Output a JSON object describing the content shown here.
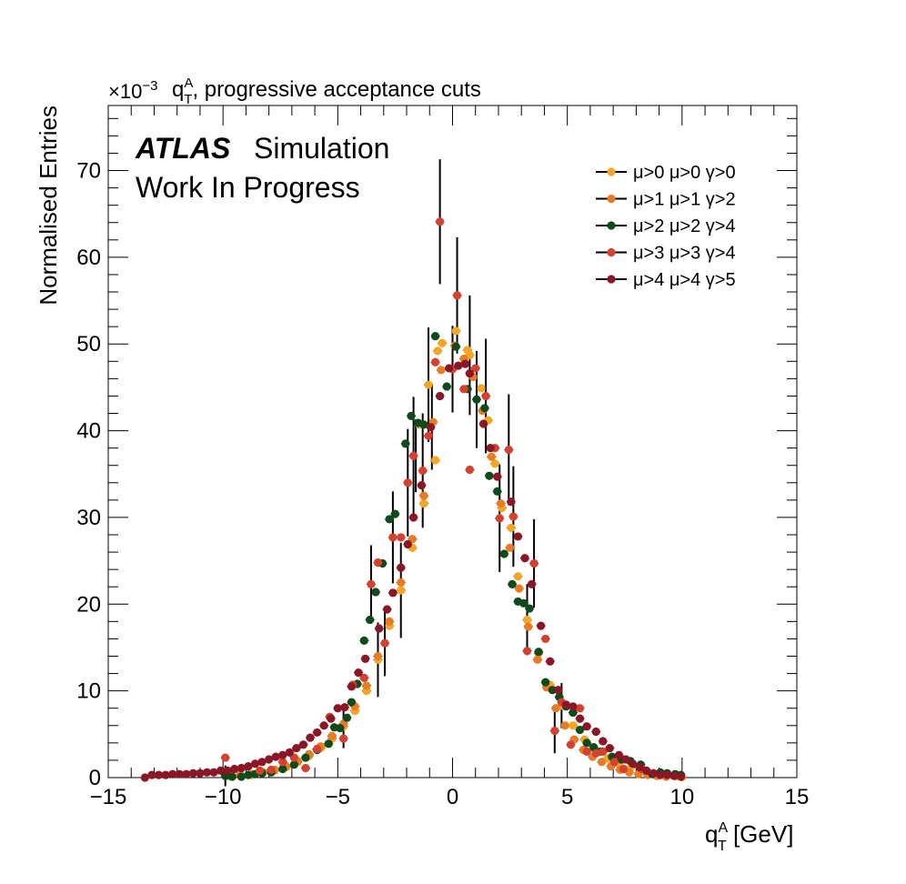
{
  "chart_data": {
    "type": "scatter",
    "title": "q_T^A, progressive acceptance cuts",
    "title_parts": {
      "prefix": "q",
      "sup": "A",
      "sub": "T",
      "rest": ", progressive acceptance cuts"
    },
    "exponent_label": {
      "base": "×10",
      "exp": "−3"
    },
    "xlabel": "q_T^A [GeV]",
    "xlabel_parts": {
      "prefix": "q",
      "sup": "A",
      "sub": "T",
      "rest": " [GeV]"
    },
    "ylabel": "Normalised Entries",
    "xlim": [
      -15,
      15
    ],
    "ylim": [
      0,
      77.5
    ],
    "y_scale_note": "values in units of 1e-3",
    "x_ticks": [
      -15,
      -10,
      -5,
      0,
      5,
      10,
      15
    ],
    "x_tick_labels": [
      "−15",
      "−10",
      "−5",
      "0",
      "5",
      "10",
      "15"
    ],
    "y_ticks": [
      0,
      10,
      20,
      30,
      40,
      50,
      60,
      70
    ],
    "y_tick_labels": [
      "0",
      "10",
      "20",
      "30",
      "40",
      "50",
      "60",
      "70"
    ],
    "grid": false,
    "legend_position": "top-right",
    "annotations": {
      "atlas": "ATLAS",
      "simulation": "Simulation",
      "status": "Work In Progress"
    },
    "series": [
      {
        "name": "μ>0  μ>0  γ>0",
        "color": "#f5a623",
        "points": [
          [
            -9.75,
            0.3
          ],
          [
            -9.25,
            0.3
          ],
          [
            -8.75,
            0.3
          ],
          [
            -8.25,
            0.6
          ],
          [
            -7.75,
            0.8
          ],
          [
            -7.25,
            1.2
          ],
          [
            -6.75,
            1.8
          ],
          [
            -6.25,
            2.5
          ],
          [
            -5.75,
            3.4
          ],
          [
            -5.25,
            4.5
          ],
          [
            -4.75,
            5.9
          ],
          [
            -4.25,
            7.7
          ],
          [
            -3.75,
            10.0
          ],
          [
            -3.25,
            13.6
          ],
          [
            -2.75,
            17.5
          ],
          [
            -2.25,
            21.6
          ],
          [
            -1.75,
            26.5
          ],
          [
            -1.25,
            31.6
          ],
          [
            -0.75,
            36.6
          ],
          [
            -1.45,
            40.7
          ],
          [
            -1.05,
            45.3
          ],
          [
            -0.65,
            49.2
          ],
          [
            -0.45,
            50.1
          ],
          [
            0.15,
            51.5
          ],
          [
            0.65,
            49.3
          ],
          [
            0.75,
            48.7
          ],
          [
            1.25,
            44.9
          ],
          [
            1.55,
            41.2
          ],
          [
            1.85,
            36.2
          ],
          [
            2.15,
            31.1
          ],
          [
            2.55,
            28.8
          ],
          [
            2.85,
            23.2
          ],
          [
            3.25,
            18.2
          ],
          [
            3.75,
            14.3
          ],
          [
            4.25,
            10.7
          ],
          [
            4.75,
            8.3
          ],
          [
            5.25,
            6.0
          ],
          [
            5.75,
            4.4
          ],
          [
            6.25,
            3.1
          ],
          [
            6.75,
            2.2
          ],
          [
            7.25,
            1.6
          ],
          [
            7.75,
            1.1
          ],
          [
            8.25,
            0.8
          ],
          [
            8.75,
            0.5
          ],
          [
            9.25,
            0.3
          ],
          [
            9.75,
            0.15
          ],
          [
            10.0,
            0.05
          ]
        ]
      },
      {
        "name": "μ>1  μ>1  γ>2",
        "color": "#e87c25",
        "points": [
          [
            -9.75,
            0.2
          ],
          [
            -9.25,
            0.3
          ],
          [
            -8.75,
            0.4
          ],
          [
            -8.25,
            0.6
          ],
          [
            -7.75,
            0.9
          ],
          [
            -7.25,
            1.3
          ],
          [
            -6.75,
            1.9
          ],
          [
            -6.25,
            2.7
          ],
          [
            -5.75,
            3.6
          ],
          [
            -5.25,
            4.8
          ],
          [
            -4.75,
            6.2
          ],
          [
            -4.25,
            8.2
          ],
          [
            -3.75,
            10.6
          ],
          [
            -3.25,
            14.0
          ],
          [
            -2.75,
            18.0
          ],
          [
            -2.25,
            22.5
          ],
          [
            -1.75,
            27.5
          ],
          [
            -1.25,
            32.5
          ],
          [
            -0.85,
            41.0
          ],
          [
            -0.5,
            47.0
          ],
          [
            0.1,
            49.8
          ],
          [
            0.5,
            48.3
          ],
          [
            0.9,
            46.2
          ],
          [
            1.3,
            42.3
          ],
          [
            1.7,
            37.0
          ],
          [
            2.1,
            31.6
          ],
          [
            2.5,
            26.5
          ],
          [
            2.9,
            21.8
          ],
          [
            3.3,
            17.4
          ],
          [
            3.7,
            13.6
          ],
          [
            4.1,
            10.4
          ],
          [
            4.5,
            8.0
          ],
          [
            4.9,
            6.0
          ],
          [
            5.3,
            4.4
          ],
          [
            5.7,
            3.2
          ],
          [
            6.1,
            2.4
          ],
          [
            6.5,
            1.8
          ],
          [
            6.9,
            1.3
          ],
          [
            7.3,
            0.9
          ],
          [
            7.7,
            0.6
          ],
          [
            8.1,
            0.4
          ],
          [
            8.5,
            0.3
          ],
          [
            8.9,
            0.2
          ],
          [
            9.3,
            0.1
          ]
        ]
      },
      {
        "name": "μ>2  μ>2  γ>4",
        "color": "#0f4a1a",
        "points": [
          [
            -9.9,
            0.2
          ],
          [
            -9.6,
            0.1
          ],
          [
            -9.2,
            0.1
          ],
          [
            -8.9,
            0.3
          ],
          [
            -8.6,
            0.4
          ],
          [
            -8.3,
            0.5
          ],
          [
            -7.9,
            0.6
          ],
          [
            -7.4,
            1.0
          ],
          [
            -6.9,
            1.5
          ],
          [
            -6.4,
            2.3
          ],
          [
            -5.9,
            3.2
          ],
          [
            -5.4,
            3.9
          ],
          [
            -5.15,
            5.8
          ],
          [
            -4.9,
            5.7
          ],
          [
            -4.6,
            6.9
          ],
          [
            -4.4,
            8.7
          ],
          [
            -4.15,
            10.8
          ],
          [
            -3.85,
            15.8
          ],
          [
            -3.6,
            18.2
          ],
          [
            -3.35,
            21.4
          ],
          [
            -3.05,
            24.7
          ],
          [
            -2.75,
            29.8
          ],
          [
            -2.5,
            30.4
          ],
          [
            -2.05,
            38.5
          ],
          [
            -1.8,
            41.7
          ],
          [
            -1.5,
            40.9
          ],
          [
            -1.25,
            40.7
          ],
          [
            -0.75,
            50.9
          ],
          [
            -0.25,
            45.1
          ],
          [
            0.15,
            49.7
          ],
          [
            0.65,
            44.8
          ],
          [
            1.05,
            43.6
          ],
          [
            1.4,
            42.6
          ],
          [
            1.6,
            34.8
          ],
          [
            1.95,
            33.0
          ],
          [
            2.25,
            25.8
          ],
          [
            2.6,
            22.3
          ],
          [
            2.85,
            20.3
          ],
          [
            3.1,
            20.1
          ],
          [
            3.35,
            19.5
          ],
          [
            3.75,
            14.5
          ],
          [
            4.05,
            11.0
          ],
          [
            4.35,
            10.1
          ],
          [
            4.65,
            9.3
          ],
          [
            4.95,
            8.2
          ],
          [
            5.25,
            7.5
          ],
          [
            5.55,
            5.5
          ],
          [
            5.85,
            4.0
          ],
          [
            6.15,
            3.5
          ],
          [
            6.45,
            3.0
          ],
          [
            6.95,
            2.4
          ],
          [
            7.35,
            2.1
          ],
          [
            7.75,
            1.9
          ],
          [
            8.2,
            1.5
          ],
          [
            8.7,
            0.4
          ],
          [
            9.05,
            0.6
          ],
          [
            9.35,
            0.5
          ],
          [
            9.7,
            0.4
          ],
          [
            9.95,
            0.3
          ]
        ]
      },
      {
        "name": "μ>3  μ>3  γ>4",
        "color": "#d6402e",
        "points": [
          [
            -9.9,
            2.3
          ],
          [
            -8.4,
            0.8
          ],
          [
            -7.9,
            0.9
          ],
          [
            -7.4,
            1.8
          ],
          [
            -6.9,
            2.3
          ],
          [
            -6.4,
            1.1
          ],
          [
            -5.9,
            3.3
          ],
          [
            -5.35,
            7.0
          ],
          [
            -4.75,
            4.5
          ],
          [
            -4.35,
            10.7
          ],
          [
            -3.85,
            11.5
          ],
          [
            -3.55,
            22.3
          ],
          [
            -3.25,
            24.8
          ],
          [
            -2.95,
            15.5
          ],
          [
            -2.6,
            27.7
          ],
          [
            -2.25,
            27.7
          ],
          [
            -1.95,
            34.0
          ],
          [
            -1.7,
            37.1
          ],
          [
            -1.3,
            35.4
          ],
          [
            -1.05,
            39.4
          ],
          [
            -0.75,
            47.9
          ],
          [
            -0.55,
            64.1
          ],
          [
            0.0,
            47.1
          ],
          [
            0.2,
            55.6
          ],
          [
            0.5,
            44.8
          ],
          [
            0.75,
            35.5
          ],
          [
            1.0,
            47.2
          ],
          [
            1.45,
            44.0
          ],
          [
            1.85,
            38.0
          ],
          [
            2.05,
            29.9
          ],
          [
            2.45,
            37.8
          ],
          [
            2.65,
            30.1
          ],
          [
            3.25,
            14.6
          ],
          [
            3.55,
            24.7
          ],
          [
            4.05,
            16.0
          ],
          [
            4.45,
            5.4
          ],
          [
            4.75,
            8.7
          ],
          [
            5.15,
            3.8
          ],
          [
            5.55,
            8.0
          ],
          [
            5.85,
            3.0
          ],
          [
            6.25,
            2.8
          ],
          [
            6.55,
            3.0
          ],
          [
            7.05,
            1.8
          ],
          [
            7.45,
            1.0
          ],
          [
            8.25,
            1.0
          ]
        ]
      },
      {
        "name": "μ>4  μ>4  γ>5",
        "color": "#8b1625",
        "points": [
          [
            -13.4,
            0.0
          ],
          [
            -13.1,
            0.3
          ],
          [
            -12.8,
            0.3
          ],
          [
            -12.5,
            0.3
          ],
          [
            -12.2,
            0.4
          ],
          [
            -11.9,
            0.4
          ],
          [
            -11.6,
            0.4
          ],
          [
            -11.3,
            0.5
          ],
          [
            -11.0,
            0.5
          ],
          [
            -10.7,
            0.6
          ],
          [
            -10.4,
            0.6
          ],
          [
            -10.1,
            0.8
          ],
          [
            -9.8,
            0.8
          ],
          [
            -9.5,
            1.0
          ],
          [
            -9.2,
            1.1
          ],
          [
            -8.9,
            1.3
          ],
          [
            -8.6,
            1.6
          ],
          [
            -8.3,
            1.8
          ],
          [
            -8.0,
            2.1
          ],
          [
            -7.7,
            2.4
          ],
          [
            -7.4,
            2.6
          ],
          [
            -7.1,
            2.9
          ],
          [
            -6.8,
            3.4
          ],
          [
            -6.5,
            3.8
          ],
          [
            -6.2,
            4.6
          ],
          [
            -5.9,
            5.2
          ],
          [
            -5.6,
            6.0
          ],
          [
            -5.3,
            6.8
          ],
          [
            -5.0,
            8.0
          ],
          [
            -4.7,
            8.1
          ],
          [
            -4.4,
            10.5
          ],
          [
            -4.1,
            12.1
          ],
          [
            -3.8,
            13.7
          ],
          [
            -3.2,
            17.2
          ],
          [
            -2.85,
            19.4
          ],
          [
            -2.6,
            21.3
          ],
          [
            -2.25,
            24.2
          ],
          [
            -1.95,
            26.9
          ],
          [
            -1.7,
            30.0
          ],
          [
            -1.35,
            33.7
          ],
          [
            -0.95,
            40.4
          ],
          [
            -0.55,
            44.0
          ],
          [
            -0.15,
            47.2
          ],
          [
            0.25,
            47.5
          ],
          [
            0.55,
            47.7
          ],
          [
            0.75,
            46.6
          ],
          [
            1.35,
            40.8
          ],
          [
            1.65,
            38.0
          ],
          [
            1.95,
            34.7
          ],
          [
            2.55,
            31.8
          ],
          [
            2.85,
            27.8
          ],
          [
            3.15,
            25.3
          ],
          [
            3.45,
            22.3
          ],
          [
            3.85,
            17.5
          ],
          [
            4.25,
            13.4
          ],
          [
            4.6,
            10.1
          ],
          [
            4.95,
            8.4
          ],
          [
            5.25,
            8.2
          ],
          [
            5.55,
            6.8
          ],
          [
            5.85,
            5.9
          ],
          [
            6.25,
            5.3
          ],
          [
            6.55,
            4.2
          ],
          [
            6.85,
            3.4
          ],
          [
            7.25,
            2.6
          ],
          [
            7.55,
            2.1
          ],
          [
            7.85,
            1.6
          ],
          [
            8.15,
            1.2
          ],
          [
            8.45,
            0.8
          ],
          [
            8.75,
            0.5
          ],
          [
            9.05,
            0.3
          ],
          [
            9.35,
            0.3
          ],
          [
            9.65,
            0.2
          ],
          [
            9.95,
            0.1
          ]
        ]
      }
    ],
    "error_bars": [
      [
        -9.9,
        1.2
      ],
      [
        -4.75,
        2.5
      ],
      [
        -3.55,
        4.5
      ],
      [
        -3.25,
        4.3
      ],
      [
        -2.95,
        3.8
      ],
      [
        -2.6,
        5.3
      ],
      [
        -2.25,
        5.5
      ],
      [
        -1.95,
        6.2
      ],
      [
        -1.7,
        6.8
      ],
      [
        -1.3,
        6.6
      ],
      [
        -1.05,
        6.6
      ],
      [
        -0.55,
        7.2
      ],
      [
        0.2,
        6.7
      ],
      [
        0.75,
        6.9
      ],
      [
        1.45,
        6.6
      ],
      [
        2.05,
        6.2
      ],
      [
        2.45,
        6.4
      ],
      [
        2.65,
        5.8
      ],
      [
        3.25,
        4.1
      ],
      [
        3.55,
        5.1
      ],
      [
        4.45,
        2.6
      ],
      [
        4.75,
        2.6
      ],
      [
        -1.6,
        4.2
      ],
      [
        -0.9,
        4.9
      ],
      [
        0.0,
        5.0
      ],
      [
        1.05,
        5.6
      ]
    ]
  }
}
